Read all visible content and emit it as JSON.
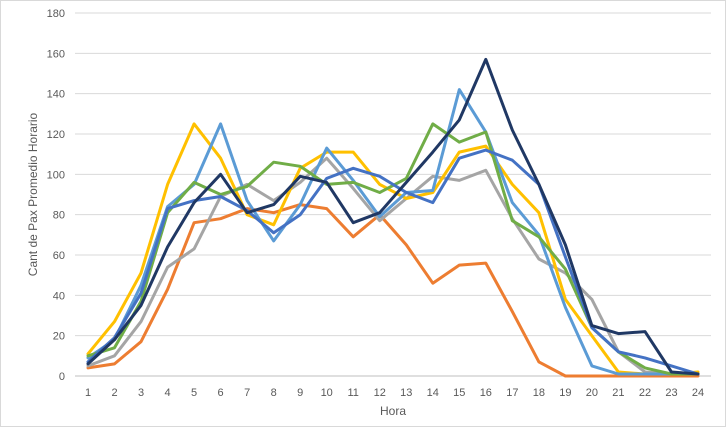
{
  "chart_data": {
    "type": "line",
    "title": "",
    "xlabel": "Hora",
    "ylabel": "Cant de Pax Promedio Horario",
    "ylim": [
      0,
      180
    ],
    "yticks": [
      0,
      20,
      40,
      60,
      80,
      100,
      120,
      140,
      160,
      180
    ],
    "x": [
      1,
      2,
      3,
      4,
      5,
      6,
      7,
      8,
      9,
      10,
      11,
      12,
      13,
      14,
      15,
      16,
      17,
      18,
      19,
      20,
      21,
      22,
      23,
      24
    ],
    "grid": "horizontal",
    "legend": "none",
    "series": [
      {
        "color": "#ED7D31",
        "values": [
          4,
          6,
          17,
          43,
          76,
          78,
          83,
          81,
          85,
          83,
          69,
          80,
          65,
          46,
          55,
          56,
          32,
          7,
          0,
          0,
          0,
          0,
          0,
          0
        ]
      },
      {
        "color": "#A5A5A5",
        "values": [
          5,
          10,
          27,
          54,
          63,
          89,
          95,
          87,
          96,
          108,
          93,
          77,
          88,
          99,
          97,
          102,
          78,
          58,
          51,
          38,
          12,
          2,
          1,
          1
        ]
      },
      {
        "color": "#FFC000",
        "values": [
          11,
          27,
          51,
          95,
          125,
          108,
          80,
          75,
          103,
          111,
          111,
          95,
          88,
          91,
          111,
          114,
          95,
          81,
          38,
          20,
          2,
          1,
          1,
          2
        ]
      },
      {
        "color": "#5B9BD5",
        "values": [
          9,
          18,
          45,
          84,
          95,
          125,
          87,
          67,
          85,
          113,
          97,
          79,
          91,
          92,
          142,
          121,
          86,
          70,
          34,
          5,
          1,
          1,
          1,
          1
        ]
      },
      {
        "color": "#70AD47",
        "values": [
          10,
          14,
          37,
          81,
          96,
          90,
          94,
          106,
          104,
          95,
          96,
          91,
          98,
          125,
          116,
          121,
          77,
          69,
          53,
          24,
          12,
          4,
          1,
          1
        ]
      },
      {
        "color": "#4472C4",
        "values": [
          7,
          19,
          41,
          83,
          87,
          89,
          82,
          71,
          80,
          98,
          103,
          99,
          91,
          86,
          108,
          112,
          107,
          95,
          59,
          24,
          12,
          9,
          5,
          1
        ]
      },
      {
        "color": "#203864",
        "values": [
          6,
          18,
          35,
          64,
          86,
          100,
          81,
          85,
          99,
          96,
          76,
          81,
          96,
          111,
          127,
          157,
          122,
          95,
          65,
          25,
          21,
          22,
          2,
          1
        ]
      }
    ]
  }
}
